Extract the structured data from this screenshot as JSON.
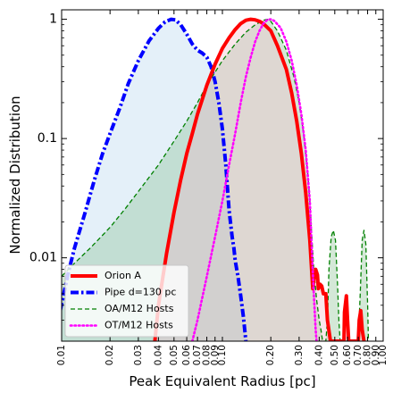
{
  "chart_data": {
    "type": "area",
    "xlabel": "Peak Equivalent Radius [pc]",
    "ylabel": "Normalized Distribution",
    "x_scale": "log",
    "y_scale": "log",
    "xlim": [
      0.01,
      1.0
    ],
    "ylim": [
      0.002,
      1.2
    ],
    "x_ticks": [
      0.01,
      0.02,
      0.03,
      0.04,
      0.05,
      0.06,
      0.07,
      0.08,
      0.09,
      0.1,
      0.2,
      0.3,
      0.4,
      0.5,
      0.6,
      0.7,
      0.8,
      0.9,
      1.0
    ],
    "x_tick_labels": [
      "0.01",
      "0.02",
      "0.03",
      "0.04",
      "0.05",
      "0.06",
      "0.07",
      "0.08",
      "0.09",
      "0.10",
      "0.20",
      "0.30",
      "0.40",
      "0.50",
      "0.60",
      "0.70",
      "0.80",
      "0.90",
      "1.00"
    ],
    "y_ticks": [
      0.01,
      0.1,
      1
    ],
    "y_tick_labels": [
      "0.01",
      "0.1",
      "1"
    ],
    "grid": false,
    "legend_position": "bottom-left",
    "series": [
      {
        "name": "Pipe d=130 pc",
        "color": "#0000ff",
        "fill": "#b3d4ee",
        "dash": "dashdot",
        "points": [
          [
            0.0098,
            0.0036
          ],
          [
            0.011,
            0.0075
          ],
          [
            0.012,
            0.012
          ],
          [
            0.014,
            0.024
          ],
          [
            0.016,
            0.045
          ],
          [
            0.018,
            0.075
          ],
          [
            0.02,
            0.11
          ],
          [
            0.023,
            0.18
          ],
          [
            0.026,
            0.29
          ],
          [
            0.03,
            0.45
          ],
          [
            0.035,
            0.66
          ],
          [
            0.04,
            0.84
          ],
          [
            0.044,
            0.95
          ],
          [
            0.048,
            1.0
          ],
          [
            0.051,
            0.99
          ],
          [
            0.055,
            0.9
          ],
          [
            0.06,
            0.75
          ],
          [
            0.065,
            0.62
          ],
          [
            0.07,
            0.55
          ],
          [
            0.075,
            0.52
          ],
          [
            0.08,
            0.48
          ],
          [
            0.085,
            0.4
          ],
          [
            0.09,
            0.3
          ],
          [
            0.095,
            0.2
          ],
          [
            0.1,
            0.12
          ],
          [
            0.105,
            0.06
          ],
          [
            0.11,
            0.025
          ],
          [
            0.115,
            0.015
          ],
          [
            0.118,
            0.012
          ],
          [
            0.12,
            0.0095
          ],
          [
            0.125,
            0.007
          ],
          [
            0.13,
            0.0048
          ],
          [
            0.135,
            0.0032
          ],
          [
            0.14,
            0.002
          ]
        ]
      },
      {
        "name": "OA/M12 Hosts",
        "color": "#008000",
        "fill": "#84bd8d",
        "dash": "dashed",
        "points": [
          [
            0.01,
            0.007
          ],
          [
            0.012,
            0.009
          ],
          [
            0.015,
            0.012
          ],
          [
            0.02,
            0.018
          ],
          [
            0.025,
            0.026
          ],
          [
            0.03,
            0.036
          ],
          [
            0.04,
            0.06
          ],
          [
            0.05,
            0.095
          ],
          [
            0.06,
            0.14
          ],
          [
            0.07,
            0.2
          ],
          [
            0.08,
            0.28
          ],
          [
            0.09,
            0.36
          ],
          [
            0.1,
            0.45
          ],
          [
            0.12,
            0.62
          ],
          [
            0.14,
            0.78
          ],
          [
            0.16,
            0.9
          ],
          [
            0.18,
            0.98
          ],
          [
            0.19,
            1.0
          ],
          [
            0.2,
            0.96
          ],
          [
            0.22,
            0.8
          ],
          [
            0.25,
            0.55
          ],
          [
            0.28,
            0.32
          ],
          [
            0.3,
            0.2
          ],
          [
            0.32,
            0.11
          ],
          [
            0.34,
            0.05
          ],
          [
            0.35,
            0.03
          ],
          [
            0.36,
            0.015
          ],
          [
            0.37,
            0.008
          ],
          [
            0.385,
            0.0045
          ],
          [
            0.4,
            0.003
          ],
          [
            0.41,
            0.0025
          ],
          [
            0.42,
            0.002
          ],
          [
            0.44,
            0.002
          ],
          [
            0.45,
            0.003
          ],
          [
            0.46,
            0.008
          ],
          [
            0.475,
            0.015
          ],
          [
            0.49,
            0.017
          ],
          [
            0.505,
            0.014
          ],
          [
            0.52,
            0.006
          ],
          [
            0.53,
            0.003
          ],
          [
            0.54,
            0.002
          ],
          [
            0.7,
            0.002
          ],
          [
            0.72,
            0.005
          ],
          [
            0.74,
            0.014
          ],
          [
            0.76,
            0.017
          ],
          [
            0.78,
            0.013
          ],
          [
            0.8,
            0.004
          ],
          [
            0.81,
            0.002
          ]
        ]
      },
      {
        "name": "Orion A",
        "color": "#ff0000",
        "fill": "#f0b8c8",
        "dash": "solid",
        "points": [
          [
            0.038,
            0.002
          ],
          [
            0.04,
            0.004
          ],
          [
            0.045,
            0.011
          ],
          [
            0.05,
            0.024
          ],
          [
            0.055,
            0.045
          ],
          [
            0.06,
            0.075
          ],
          [
            0.065,
            0.11
          ],
          [
            0.07,
            0.16
          ],
          [
            0.08,
            0.28
          ],
          [
            0.09,
            0.42
          ],
          [
            0.1,
            0.57
          ],
          [
            0.11,
            0.7
          ],
          [
            0.12,
            0.82
          ],
          [
            0.13,
            0.92
          ],
          [
            0.14,
            0.98
          ],
          [
            0.15,
            1.0
          ],
          [
            0.16,
            0.99
          ],
          [
            0.17,
            0.96
          ],
          [
            0.18,
            0.92
          ],
          [
            0.2,
            0.8
          ],
          [
            0.22,
            0.6
          ],
          [
            0.25,
            0.38
          ],
          [
            0.27,
            0.24
          ],
          [
            0.29,
            0.14
          ],
          [
            0.31,
            0.075
          ],
          [
            0.33,
            0.035
          ],
          [
            0.35,
            0.014
          ],
          [
            0.36,
            0.0075
          ],
          [
            0.365,
            0.0055
          ],
          [
            0.37,
            0.0065
          ],
          [
            0.38,
            0.008
          ],
          [
            0.39,
            0.0072
          ],
          [
            0.395,
            0.0055
          ],
          [
            0.405,
            0.006
          ],
          [
            0.415,
            0.0058
          ],
          [
            0.425,
            0.005
          ],
          [
            0.44,
            0.005
          ],
          [
            0.45,
            0.003
          ],
          [
            0.47,
            0.002
          ],
          [
            0.57,
            0.002
          ],
          [
            0.575,
            0.0035
          ],
          [
            0.59,
            0.0048
          ],
          [
            0.6,
            0.003
          ],
          [
            0.61,
            0.002
          ],
          [
            0.7,
            0.002
          ],
          [
            0.71,
            0.003
          ],
          [
            0.725,
            0.0036
          ],
          [
            0.74,
            0.0025
          ],
          [
            0.76,
            0.002
          ]
        ]
      },
      {
        "name": "OT/M12 Hosts",
        "color": "#ff00ff",
        "fill": "none",
        "dash": "dotted",
        "points": [
          [
            0.065,
            0.002
          ],
          [
            0.07,
            0.003
          ],
          [
            0.08,
            0.007
          ],
          [
            0.09,
            0.015
          ],
          [
            0.1,
            0.03
          ],
          [
            0.11,
            0.06
          ],
          [
            0.12,
            0.11
          ],
          [
            0.13,
            0.2
          ],
          [
            0.14,
            0.33
          ],
          [
            0.15,
            0.48
          ],
          [
            0.16,
            0.65
          ],
          [
            0.17,
            0.8
          ],
          [
            0.18,
            0.92
          ],
          [
            0.19,
            0.99
          ],
          [
            0.2,
            1.0
          ],
          [
            0.21,
            0.97
          ],
          [
            0.23,
            0.85
          ],
          [
            0.25,
            0.65
          ],
          [
            0.27,
            0.45
          ],
          [
            0.29,
            0.28
          ],
          [
            0.31,
            0.16
          ],
          [
            0.33,
            0.08
          ],
          [
            0.35,
            0.03
          ],
          [
            0.36,
            0.012
          ],
          [
            0.37,
            0.005
          ],
          [
            0.38,
            0.0025
          ],
          [
            0.385,
            0.002
          ]
        ]
      }
    ],
    "legend_order": [
      "Orion A",
      "Pipe d=130 pc",
      "OA/M12 Hosts",
      "OT/M12 Hosts"
    ]
  }
}
